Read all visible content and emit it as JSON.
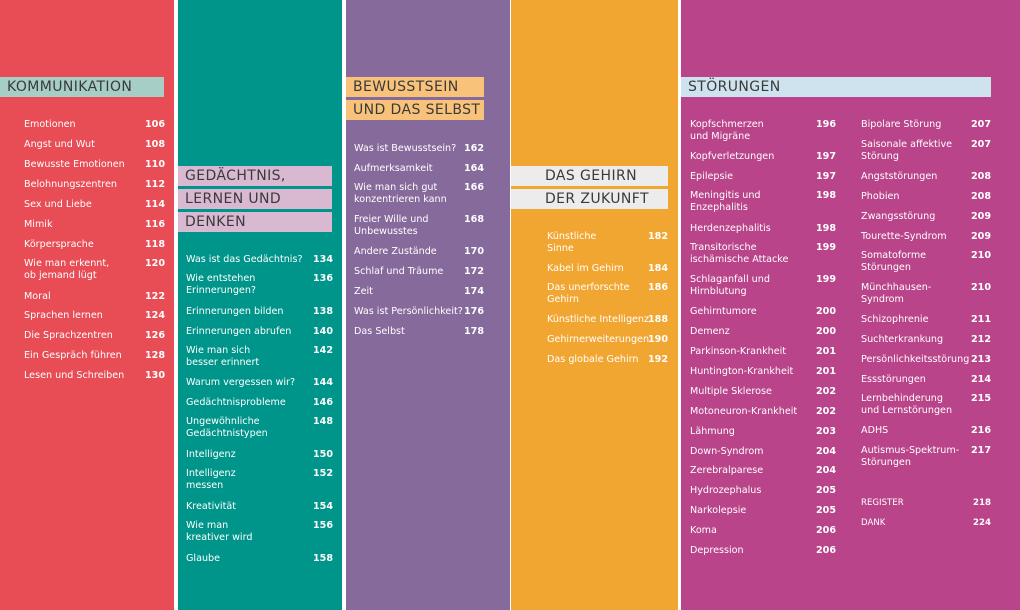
{
  "colors": {
    "kommunikation_bg": "#e84c55",
    "gedaechtnis_bg": "#00958a",
    "bewusstsein_bg": "#876a9c",
    "gehirn_bg": "#f2a632",
    "stoerungen_bg": "#b9448a",
    "kommunikation_header": "#a7cdc7",
    "gedaechtnis_header": "#d9b8d2",
    "bewusstsein_header": "#f8c27a",
    "gehirn_header": "#ececec",
    "stoerungen_header": "#cfe3ef"
  },
  "kommunikation": {
    "title": [
      "KOMMUNIKATION"
    ],
    "entries": [
      {
        "title": "Emotionen",
        "page": "106"
      },
      {
        "title": "Angst und Wut",
        "page": "108"
      },
      {
        "title": "Bewusste Emotionen",
        "page": "110"
      },
      {
        "title": "Belohnungszentren",
        "page": "112"
      },
      {
        "title": "Sex und Liebe",
        "page": "114"
      },
      {
        "title": "Mimik",
        "page": "116"
      },
      {
        "title": "Körpersprache",
        "page": "118"
      },
      {
        "title": "Wie man erkennt,\nob jemand lügt",
        "page": "120"
      },
      {
        "title": "Moral",
        "page": "122"
      },
      {
        "title": "Sprachen lernen",
        "page": "124"
      },
      {
        "title": "Die Sprachzentren",
        "page": "126"
      },
      {
        "title": "Ein Gespräch führen",
        "page": "128"
      },
      {
        "title": "Lesen und Schreiben",
        "page": "130"
      }
    ]
  },
  "gedaechtnis": {
    "title": [
      "GEDÄCHTNIS,",
      "LERNEN UND",
      "DENKEN"
    ],
    "entries": [
      {
        "title": "Was ist das Gedächtnis?",
        "page": "134"
      },
      {
        "title": "Wie entstehen\nErinnerungen?",
        "page": "136"
      },
      {
        "title": "Erinnerungen bilden",
        "page": "138"
      },
      {
        "title": "Erinnerungen abrufen",
        "page": "140"
      },
      {
        "title": "Wie man sich\nbesser erinnert",
        "page": "142"
      },
      {
        "title": "Warum vergessen wir?",
        "page": "144"
      },
      {
        "title": "Gedächtnisprobleme",
        "page": "146"
      },
      {
        "title": "Ungewöhnliche\nGedächtnistypen",
        "page": "148"
      },
      {
        "title": "Intelligenz",
        "page": "150"
      },
      {
        "title": "Intelligenz\nmessen",
        "page": "152"
      },
      {
        "title": "Kreativität",
        "page": "154"
      },
      {
        "title": "Wie man\nkreativer wird",
        "page": "156"
      },
      {
        "title": "Glaube",
        "page": "158"
      }
    ]
  },
  "bewusstsein": {
    "title": [
      "BEWUSSTSEIN",
      "UND DAS SELBST"
    ],
    "entries": [
      {
        "title": "Was ist Bewusstsein?",
        "page": "162"
      },
      {
        "title": "Aufmerksamkeit",
        "page": "164"
      },
      {
        "title": "Wie man sich gut\nkonzentrieren kann",
        "page": "166"
      },
      {
        "title": "Freier Wille und\nUnbewusstes",
        "page": "168"
      },
      {
        "title": "Andere Zustände",
        "page": "170"
      },
      {
        "title": "Schlaf und Träume",
        "page": "172"
      },
      {
        "title": "Zeit",
        "page": "174"
      },
      {
        "title": "Was ist Persönlichkeit?",
        "page": "176"
      },
      {
        "title": "Das Selbst",
        "page": "178"
      }
    ]
  },
  "gehirn": {
    "title": [
      "DAS GEHIRN",
      "DER ZUKUNFT"
    ],
    "entries": [
      {
        "title": "Künstliche\nSinne",
        "page": "182"
      },
      {
        "title": "Kabel im Gehirn",
        "page": "184"
      },
      {
        "title": "Das unerforschte\nGehirn",
        "page": "186"
      },
      {
        "title": "Künstliche Intelligenz",
        "page": "188"
      },
      {
        "title": "Gehirnerweiterungen",
        "page": "190"
      },
      {
        "title": "Das globale Gehirn",
        "page": "192"
      }
    ]
  },
  "stoerungen": {
    "title": [
      "STÖRUNGEN"
    ],
    "entries_left": [
      {
        "title": "Kopfschmerzen\nund Migräne",
        "page": "196"
      },
      {
        "title": "Kopfverletzungen",
        "page": "197"
      },
      {
        "title": "Epilepsie",
        "page": "197"
      },
      {
        "title": "Meningitis und\nEnzephalitis",
        "page": "198"
      },
      {
        "title": "Herdenzephalitis",
        "page": "198"
      },
      {
        "title": "Transitorische\nischämische Attacke",
        "page": "199"
      },
      {
        "title": "Schlaganfall und\nHirnblutung",
        "page": "199"
      },
      {
        "title": "Gehirntumore",
        "page": "200"
      },
      {
        "title": "Demenz",
        "page": "200"
      },
      {
        "title": "Parkinson-Krankheit",
        "page": "201"
      },
      {
        "title": "Huntington-Krankheit",
        "page": "201"
      },
      {
        "title": "Multiple Sklerose",
        "page": "202"
      },
      {
        "title": "Motoneuron-Krankheit",
        "page": "202"
      },
      {
        "title": "Lähmung",
        "page": "203"
      },
      {
        "title": "Down-Syndrom",
        "page": "204"
      },
      {
        "title": "Zerebralparese",
        "page": "204"
      },
      {
        "title": "Hydrozephalus",
        "page": "205"
      },
      {
        "title": "Narkolepsie",
        "page": "205"
      },
      {
        "title": "Koma",
        "page": "206"
      },
      {
        "title": "Depression",
        "page": "206"
      }
    ],
    "entries_right": [
      {
        "title": "Bipolare Störung",
        "page": "207"
      },
      {
        "title": "Saisonale affektive\nStörung",
        "page": "207"
      },
      {
        "title": "Angststörungen",
        "page": "208"
      },
      {
        "title": "Phobien",
        "page": "208"
      },
      {
        "title": "Zwangsstörung",
        "page": "209"
      },
      {
        "title": "Tourette-Syndrom",
        "page": "209"
      },
      {
        "title": "Somatoforme\nStörungen",
        "page": "210"
      },
      {
        "title": "Münchhausen-\nSyndrom",
        "page": "210"
      },
      {
        "title": "Schizophrenie",
        "page": "211"
      },
      {
        "title": "Suchterkrankung",
        "page": "212"
      },
      {
        "title": "Persönlichkeitsstörung",
        "page": "213"
      },
      {
        "title": "Essstörungen",
        "page": "214"
      },
      {
        "title": "Lernbehinderung\nund Lernstörungen",
        "page": "215"
      },
      {
        "title": "ADHS",
        "page": "216"
      },
      {
        "title": "Autismus-Spektrum-\nStörungen",
        "page": "217"
      }
    ],
    "extras": [
      {
        "title": "REGISTER",
        "page": "218"
      },
      {
        "title": "DANK",
        "page": "224"
      }
    ]
  }
}
